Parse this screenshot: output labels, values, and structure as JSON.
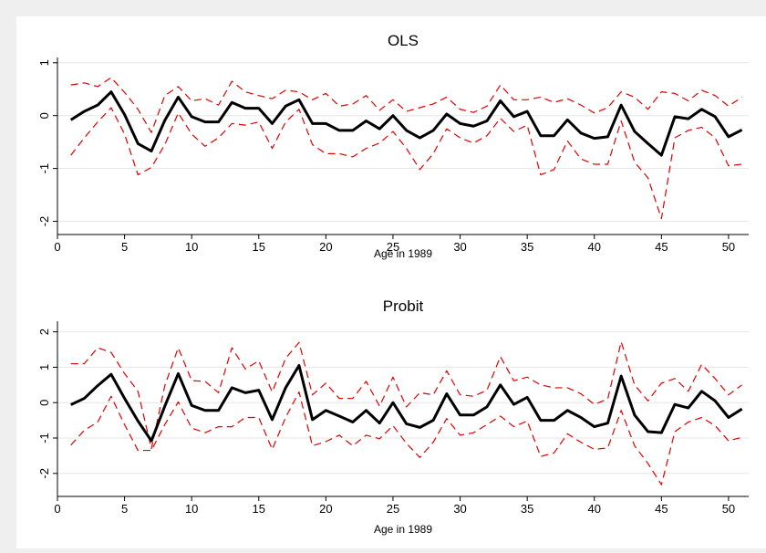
{
  "chart_data": [
    {
      "type": "line",
      "title": "OLS",
      "xlabel": "Age in 1989",
      "ylabel": "",
      "xlim": [
        0,
        51.5
      ],
      "ylim": [
        -2.25,
        1.1
      ],
      "xticks": [
        0,
        5,
        10,
        15,
        20,
        25,
        30,
        35,
        40,
        45,
        50
      ],
      "yticks": [
        -2,
        -1,
        0,
        1
      ],
      "grid": true,
      "legend": "none",
      "x": [
        1,
        2,
        3,
        4,
        5,
        6,
        7,
        8,
        9,
        10,
        11,
        12,
        13,
        14,
        15,
        16,
        17,
        18,
        19,
        20,
        21,
        22,
        23,
        24,
        25,
        26,
        27,
        28,
        29,
        30,
        31,
        32,
        33,
        34,
        35,
        36,
        37,
        38,
        39,
        40,
        41,
        42,
        43,
        44,
        45,
        46,
        47,
        48,
        49,
        50,
        51
      ],
      "series": [
        {
          "role": "estimate",
          "color": "#000000",
          "dash": "solid",
          "values": [
            -0.08,
            0.08,
            0.2,
            0.45,
            0.02,
            -0.53,
            -0.67,
            -0.09,
            0.35,
            -0.02,
            -0.12,
            -0.12,
            0.25,
            0.14,
            0.14,
            -0.15,
            0.18,
            0.3,
            -0.15,
            -0.15,
            -0.28,
            -0.28,
            -0.1,
            -0.25,
            0.0,
            -0.28,
            -0.42,
            -0.28,
            0.03,
            -0.15,
            -0.2,
            -0.1,
            0.28,
            -0.02,
            0.08,
            -0.38,
            -0.38,
            -0.08,
            -0.33,
            -0.43,
            -0.4,
            0.2,
            -0.3,
            -0.53,
            -0.75,
            -0.02,
            -0.06,
            0.12,
            -0.02,
            -0.4,
            -0.27
          ]
        },
        {
          "role": "upper",
          "color": "#e00000",
          "dash": "dashed",
          "values": [
            0.58,
            0.62,
            0.55,
            0.72,
            0.44,
            0.12,
            -0.32,
            0.38,
            0.55,
            0.28,
            0.32,
            0.2,
            0.65,
            0.45,
            0.38,
            0.32,
            0.48,
            0.45,
            0.3,
            0.42,
            0.18,
            0.22,
            0.38,
            0.1,
            0.3,
            0.08,
            0.15,
            0.22,
            0.35,
            0.12,
            0.06,
            0.18,
            0.58,
            0.3,
            0.3,
            0.35,
            0.25,
            0.32,
            0.2,
            0.05,
            0.15,
            0.45,
            0.35,
            0.12,
            0.45,
            0.42,
            0.28,
            0.48,
            0.38,
            0.18,
            0.35
          ]
        },
        {
          "role": "lower",
          "color": "#e00000",
          "dash": "dashed",
          "values": [
            -0.75,
            -0.42,
            -0.12,
            0.15,
            -0.35,
            -1.12,
            -0.98,
            -0.55,
            0.05,
            -0.35,
            -0.58,
            -0.42,
            -0.15,
            -0.18,
            -0.12,
            -0.62,
            -0.12,
            0.12,
            -0.55,
            -0.72,
            -0.72,
            -0.78,
            -0.62,
            -0.52,
            -0.3,
            -0.62,
            -1.02,
            -0.72,
            -0.25,
            -0.42,
            -0.52,
            -0.38,
            -0.05,
            -0.3,
            -0.18,
            -1.12,
            -1.02,
            -0.48,
            -0.82,
            -0.92,
            -0.92,
            -0.1,
            -0.88,
            -1.18,
            -1.95,
            -0.42,
            -0.28,
            -0.22,
            -0.42,
            -0.95,
            -0.92
          ]
        }
      ]
    },
    {
      "type": "line",
      "title": "Probit",
      "xlabel": "Age in 1989",
      "ylabel": "",
      "xlim": [
        0,
        51.5
      ],
      "ylim": [
        -2.65,
        2.3
      ],
      "xticks": [
        0,
        5,
        10,
        15,
        20,
        25,
        30,
        35,
        40,
        45,
        50
      ],
      "yticks": [
        -2,
        -1,
        0,
        1,
        2
      ],
      "grid": true,
      "legend": "none",
      "x": [
        1,
        2,
        3,
        4,
        5,
        6,
        7,
        8,
        9,
        10,
        11,
        12,
        13,
        14,
        15,
        16,
        17,
        18,
        19,
        20,
        21,
        22,
        23,
        24,
        25,
        26,
        27,
        28,
        29,
        30,
        31,
        32,
        33,
        34,
        35,
        36,
        37,
        38,
        39,
        40,
        41,
        42,
        43,
        44,
        45,
        46,
        47,
        48,
        49,
        50,
        51
      ],
      "series": [
        {
          "role": "estimate",
          "color": "#000000",
          "dash": "solid",
          "values": [
            -0.06,
            0.12,
            0.48,
            0.8,
            0.12,
            -0.52,
            -1.08,
            -0.1,
            0.82,
            -0.08,
            -0.22,
            -0.22,
            0.42,
            0.28,
            0.35,
            -0.48,
            0.42,
            1.05,
            -0.48,
            -0.22,
            -0.38,
            -0.55,
            -0.22,
            -0.58,
            0.0,
            -0.6,
            -0.7,
            -0.5,
            0.25,
            -0.35,
            -0.35,
            -0.12,
            0.5,
            -0.05,
            0.15,
            -0.5,
            -0.5,
            -0.22,
            -0.42,
            -0.68,
            -0.58,
            0.75,
            -0.35,
            -0.82,
            -0.85,
            -0.05,
            -0.15,
            0.32,
            0.05,
            -0.42,
            -0.18
          ]
        },
        {
          "role": "upper",
          "color": "#e00000",
          "dash": "dashed",
          "values": [
            1.1,
            1.1,
            1.55,
            1.42,
            0.82,
            0.32,
            -1.3,
            0.48,
            1.55,
            0.62,
            0.6,
            0.28,
            1.55,
            0.95,
            1.18,
            0.3,
            1.25,
            1.7,
            0.22,
            0.55,
            0.12,
            0.12,
            0.6,
            -0.1,
            0.72,
            -0.12,
            0.28,
            0.22,
            0.9,
            0.22,
            0.18,
            0.35,
            1.3,
            0.62,
            0.72,
            0.5,
            0.42,
            0.42,
            0.25,
            -0.05,
            0.1,
            1.72,
            0.5,
            0.05,
            0.55,
            0.68,
            0.32,
            1.08,
            0.68,
            0.22,
            0.5
          ]
        },
        {
          "role": "lower",
          "color": "#e00000",
          "dash": "dashed",
          "values": [
            -1.2,
            -0.78,
            -0.55,
            0.18,
            -0.62,
            -1.35,
            -1.35,
            -0.62,
            0.02,
            -0.72,
            -0.85,
            -0.68,
            -0.68,
            -0.42,
            -0.42,
            -1.32,
            -0.42,
            0.3,
            -1.22,
            -1.1,
            -0.92,
            -1.22,
            -0.92,
            -1.02,
            -0.65,
            -1.15,
            -1.55,
            -1.12,
            -0.45,
            -0.92,
            -0.85,
            -0.62,
            -0.38,
            -0.68,
            -0.52,
            -1.52,
            -1.42,
            -0.88,
            -1.12,
            -1.32,
            -1.28,
            -0.22,
            -1.22,
            -1.72,
            -2.32,
            -0.82,
            -0.55,
            -0.42,
            -0.65,
            -1.08,
            -0.98
          ]
        }
      ]
    }
  ]
}
